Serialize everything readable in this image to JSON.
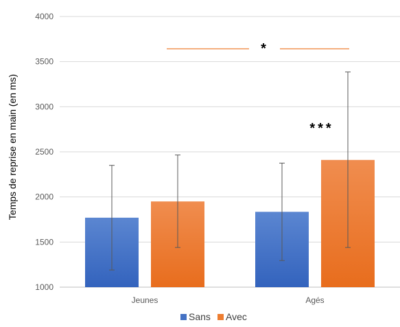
{
  "chart_data": {
    "type": "bar",
    "title": "",
    "xlabel": "",
    "ylabel": "Temps de reprise en main (en ms)",
    "ylim": [
      1000,
      4000
    ],
    "yticks": [
      1000,
      1500,
      2000,
      2500,
      3000,
      3500,
      4000
    ],
    "grid": true,
    "legend_position": "bottom",
    "categories": [
      "Jeunes",
      "Agés"
    ],
    "series": [
      {
        "name": "Sans",
        "values": [
          1770,
          1835
        ],
        "error_low": [
          1190,
          1295
        ],
        "error_high": [
          2350,
          2375
        ],
        "color": "#4472C4"
      },
      {
        "name": "Avec",
        "values": [
          1950,
          2410
        ],
        "error_low": [
          1440,
          1440
        ],
        "error_high": [
          2465,
          3385
        ],
        "color": "#ED7D31"
      }
    ],
    "annotations": [
      {
        "text": "*",
        "between": "Jeunes / Agés, Avec"
      },
      {
        "text": "***",
        "on": "Agés"
      }
    ]
  }
}
